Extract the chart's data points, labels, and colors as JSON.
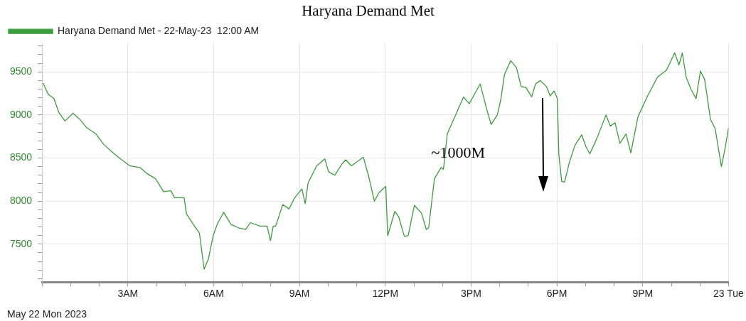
{
  "chart_data": {
    "type": "line",
    "title": "Haryana Demand Met",
    "x": [
      "2023-05-22T00:02",
      "2023-05-22T00:13",
      "2023-05-22T00:25",
      "2023-05-22T00:35",
      "2023-05-22T00:48",
      "2023-05-22T01:05",
      "2023-05-22T01:19",
      "2023-05-22T01:34",
      "2023-05-22T01:53",
      "2023-05-22T02:09",
      "2023-05-22T02:29",
      "2023-05-22T02:47",
      "2023-05-22T03:04",
      "2023-05-22T03:25",
      "2023-05-22T03:40",
      "2023-05-22T03:58",
      "2023-05-22T04:15",
      "2023-05-22T04:30",
      "2023-05-22T04:38",
      "2023-05-22T04:58",
      "2023-05-22T05:03",
      "2023-05-22T05:16",
      "2023-05-22T05:30",
      "2023-05-22T05:40",
      "2023-05-22T05:49",
      "2023-05-22T05:59",
      "2023-05-22T06:08",
      "2023-05-22T06:21",
      "2023-05-22T06:36",
      "2023-05-22T06:52",
      "2023-05-22T07:07",
      "2023-05-22T07:17",
      "2023-05-22T07:37",
      "2023-05-22T07:52",
      "2023-05-22T07:59",
      "2023-05-22T08:05",
      "2023-05-22T08:10",
      "2023-05-22T08:25",
      "2023-05-22T08:38",
      "2023-05-22T08:50",
      "2023-05-22T09:05",
      "2023-05-22T09:12",
      "2023-05-22T09:18",
      "2023-05-22T09:36",
      "2023-05-22T09:53",
      "2023-05-22T10:01",
      "2023-05-22T10:14",
      "2023-05-22T10:29",
      "2023-05-22T10:37",
      "2023-05-22T10:49",
      "2023-05-22T11:14",
      "2023-05-22T11:25",
      "2023-05-22T11:37",
      "2023-05-22T11:47",
      "2023-05-22T12:01",
      "2023-05-22T12:05",
      "2023-05-22T12:20",
      "2023-05-22T12:28",
      "2023-05-22T12:40",
      "2023-05-22T12:48",
      "2023-05-22T13:01",
      "2023-05-22T13:16",
      "2023-05-22T13:26",
      "2023-05-22T13:31",
      "2023-05-22T13:43",
      "2023-05-22T13:57",
      "2023-05-22T14:02",
      "2023-05-22T14:10",
      "2023-05-22T14:26",
      "2023-05-22T14:44",
      "2023-05-22T14:56",
      "2023-05-22T15:07",
      "2023-05-22T15:19",
      "2023-05-22T15:32",
      "2023-05-22T15:42",
      "2023-05-22T15:55",
      "2023-05-22T16:02",
      "2023-05-22T16:10",
      "2023-05-22T16:23",
      "2023-05-22T16:35",
      "2023-05-22T16:45",
      "2023-05-22T16:55",
      "2023-05-22T17:07",
      "2023-05-22T17:15",
      "2023-05-22T17:25",
      "2023-05-22T17:38",
      "2023-05-22T17:46",
      "2023-05-22T17:54",
      "2023-05-22T18:01",
      "2023-05-22T18:04",
      "2023-05-22T18:10",
      "2023-05-22T18:16",
      "2023-05-22T18:26",
      "2023-05-22T18:38",
      "2023-05-22T18:52",
      "2023-05-22T19:01",
      "2023-05-22T19:09",
      "2023-05-22T19:24",
      "2023-05-22T19:43",
      "2023-05-22T19:52",
      "2023-05-22T20:02",
      "2023-05-22T20:12",
      "2023-05-22T20:25",
      "2023-05-22T20:35",
      "2023-05-22T20:50",
      "2023-05-22T21:10",
      "2023-05-22T21:31",
      "2023-05-22T21:50",
      "2023-05-22T22:07",
      "2023-05-22T22:16",
      "2023-05-22T22:23",
      "2023-05-22T22:31",
      "2023-05-22T22:41",
      "2023-05-22T22:52",
      "2023-05-22T23:01",
      "2023-05-22T23:10",
      "2023-05-22T23:22",
      "2023-05-22T23:32",
      "2023-05-22T23:45",
      "2023-05-22T23:53",
      "2023-05-23T00:00"
    ],
    "series": [
      {
        "name": "Haryana Demand Met - 22-May-23  12:00 AM",
        "color": "#3c9c3c",
        "values": [
          9370,
          9240,
          9190,
          9030,
          8930,
          9020,
          8950,
          8850,
          8780,
          8660,
          8560,
          8480,
          8410,
          8390,
          8320,
          8260,
          8110,
          8120,
          8040,
          8040,
          7850,
          7740,
          7630,
          7210,
          7330,
          7600,
          7740,
          7870,
          7730,
          7690,
          7670,
          7750,
          7710,
          7710,
          7540,
          7710,
          7710,
          7960,
          7910,
          8040,
          8140,
          7970,
          8210,
          8410,
          8490,
          8340,
          8300,
          8430,
          8480,
          8410,
          8510,
          8290,
          8000,
          8100,
          8170,
          7600,
          7880,
          7820,
          7590,
          7600,
          7950,
          7860,
          7670,
          7690,
          8260,
          8390,
          8370,
          8780,
          8980,
          9210,
          9130,
          9240,
          9360,
          9080,
          8890,
          9000,
          9170,
          9470,
          9630,
          9550,
          9330,
          9320,
          9210,
          9360,
          9400,
          9330,
          9220,
          9280,
          9190,
          8540,
          8230,
          8220,
          8450,
          8650,
          8770,
          8630,
          8550,
          8730,
          9000,
          8870,
          8910,
          8670,
          8780,
          8560,
          8980,
          9220,
          9440,
          9520,
          9720,
          9580,
          9720,
          9440,
          9300,
          9190,
          9510,
          9410,
          8950,
          8840,
          8400,
          8620,
          8850
        ]
      }
    ],
    "xlim": [
      "2023-05-22T00:00",
      "2023-05-23T00:00"
    ],
    "xticks": [
      {
        "value": "2023-05-22T00:00",
        "label": null
      },
      {
        "value": "2023-05-22T01:00",
        "label": null
      },
      {
        "value": "2023-05-22T02:00",
        "label": null
      },
      {
        "value": "2023-05-22T03:00",
        "label": "3AM"
      },
      {
        "value": "2023-05-22T04:00",
        "label": null
      },
      {
        "value": "2023-05-22T05:00",
        "label": null
      },
      {
        "value": "2023-05-22T06:00",
        "label": "6AM"
      },
      {
        "value": "2023-05-22T07:00",
        "label": null
      },
      {
        "value": "2023-05-22T08:00",
        "label": null
      },
      {
        "value": "2023-05-22T09:00",
        "label": "9AM"
      },
      {
        "value": "2023-05-22T10:00",
        "label": null
      },
      {
        "value": "2023-05-22T11:00",
        "label": null
      },
      {
        "value": "2023-05-22T12:00",
        "label": "12PM"
      },
      {
        "value": "2023-05-22T13:00",
        "label": null
      },
      {
        "value": "2023-05-22T14:00",
        "label": null
      },
      {
        "value": "2023-05-22T15:00",
        "label": "3PM"
      },
      {
        "value": "2023-05-22T16:00",
        "label": null
      },
      {
        "value": "2023-05-22T17:00",
        "label": null
      },
      {
        "value": "2023-05-22T18:00",
        "label": "6PM"
      },
      {
        "value": "2023-05-22T19:00",
        "label": null
      },
      {
        "value": "2023-05-22T20:00",
        "label": null
      },
      {
        "value": "2023-05-22T21:00",
        "label": "9PM"
      },
      {
        "value": "2023-05-22T22:00",
        "label": null
      },
      {
        "value": "2023-05-22T23:00",
        "label": null
      },
      {
        "value": "2023-05-23T00:00",
        "label": "23 Tue"
      }
    ],
    "ylim": [
      7060,
      9830
    ],
    "yticks": [
      {
        "value": 7100,
        "label": null
      },
      {
        "value": 7200,
        "label": null
      },
      {
        "value": 7300,
        "label": null
      },
      {
        "value": 7400,
        "label": null
      },
      7500,
      {
        "value": 7600,
        "label": null
      },
      {
        "value": 7700,
        "label": null
      },
      {
        "value": 7800,
        "label": null
      },
      {
        "value": 7900,
        "label": null
      },
      8000,
      {
        "value": 8100,
        "label": null
      },
      {
        "value": 8200,
        "label": null
      },
      {
        "value": 8300,
        "label": null
      },
      {
        "value": 8400,
        "label": null
      },
      8500,
      {
        "value": 8600,
        "label": null
      },
      {
        "value": 8700,
        "label": null
      },
      {
        "value": 8800,
        "label": null
      },
      {
        "value": 8900,
        "label": null
      },
      9000,
      {
        "value": 9100,
        "label": null
      },
      {
        "value": 9200,
        "label": null
      },
      {
        "value": 9300,
        "label": null
      },
      {
        "value": 9400,
        "label": null
      },
      9500,
      {
        "value": 9600,
        "label": null
      },
      {
        "value": 9700,
        "label": null
      },
      {
        "value": 9800,
        "label": null
      }
    ],
    "grid": true,
    "legend": "top left",
    "marker": "none",
    "line_style": "solid",
    "annotations": [
      "~1000M",
      "May 22 Mon 2023"
    ]
  }
}
